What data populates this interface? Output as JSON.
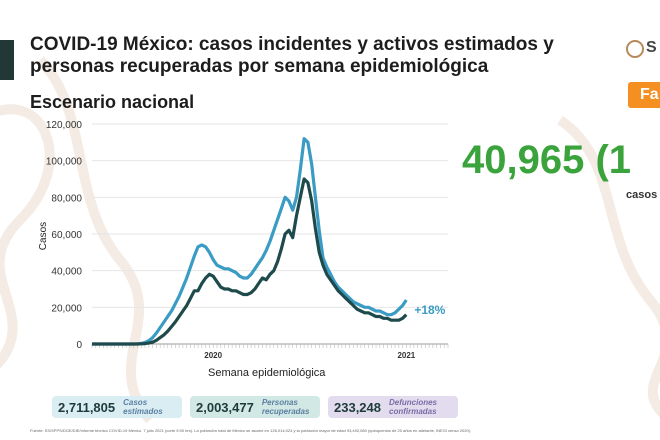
{
  "header": {
    "title": "COVID-19 México: casos incidentes y activos estimados y personas recuperadas por semana epidemiológica",
    "subtitle": "Escenario nacional",
    "logo_text": "S",
    "tag": "Fa"
  },
  "highlight": {
    "value": "40,965 (1",
    "caption": "casos a"
  },
  "chart_data": {
    "type": "line",
    "xlabel": "Semana epidemiológica",
    "ylabel": "Casos",
    "ylim": [
      0,
      120000
    ],
    "yticks": [
      0,
      20000,
      40000,
      60000,
      80000,
      100000,
      120000
    ],
    "ytick_labels": [
      "0",
      "20,000",
      "40,000",
      "60,000",
      "80,000",
      "100,000",
      "120,000"
    ],
    "xtick_labels": [
      {
        "label": "2020",
        "week": 32
      },
      {
        "label": "2021",
        "week": 83
      }
    ],
    "weeks": 95,
    "series": [
      {
        "color": "#3a9bc4",
        "values": [
          0,
          0,
          0,
          0,
          0,
          0,
          0,
          0,
          0,
          0,
          0,
          0,
          100,
          300,
          800,
          1800,
          3500,
          6000,
          9000,
          12000,
          15000,
          18000,
          22000,
          26000,
          31000,
          36000,
          42000,
          48000,
          53000,
          54000,
          53000,
          50000,
          46000,
          43000,
          42000,
          41000,
          41000,
          40000,
          39000,
          37000,
          36000,
          36000,
          38000,
          41000,
          44000,
          47000,
          51000,
          56000,
          62000,
          68000,
          74000,
          80000,
          78000,
          73000,
          80000,
          95000,
          112000,
          110000,
          98000,
          80000,
          62000,
          47000,
          42000,
          38000,
          34000,
          31000,
          29000,
          27000,
          25000,
          23000,
          22000,
          21000,
          20000,
          20000,
          19000,
          18000,
          18000,
          17000,
          16000,
          16000,
          17000,
          19000,
          21000,
          24000
        ]
      },
      {
        "color": "#1f4a4c",
        "values": [
          0,
          0,
          0,
          0,
          0,
          0,
          0,
          0,
          0,
          0,
          0,
          0,
          0,
          100,
          200,
          500,
          1000,
          2000,
          3500,
          5000,
          7000,
          9500,
          12000,
          15000,
          18000,
          21000,
          25000,
          29000,
          29000,
          33000,
          36000,
          38000,
          37000,
          34000,
          31000,
          30000,
          30000,
          29000,
          29000,
          28000,
          27000,
          27000,
          28000,
          30000,
          33000,
          36000,
          35000,
          38000,
          40000,
          45000,
          52000,
          60000,
          62000,
          58000,
          70000,
          80000,
          90000,
          88000,
          78000,
          63000,
          50000,
          43000,
          38000,
          35000,
          32000,
          29000,
          27000,
          25000,
          23000,
          21000,
          19000,
          18000,
          17000,
          17000,
          16000,
          15000,
          15000,
          14000,
          14000,
          13000,
          13000,
          13000,
          14000,
          16000
        ]
      }
    ],
    "annotations": [
      {
        "text": "+18%",
        "color": "#3a9bc4"
      }
    ],
    "grid": true,
    "legend": "none"
  },
  "stats": [
    {
      "value": "2,711,805",
      "label": "Casos estimados"
    },
    {
      "value": "2,003,477",
      "label": "Personas recuperadas"
    },
    {
      "value": "233,248",
      "label": "Defunciones confirmadas"
    }
  ],
  "footnote": "Fuente: SS/SPPS/DGE/DIE/Informe técnico COVID-19 México. 7 julio 2021 (corte 9:00 hrs). La población total de México se asume en 126,014,024 y la población mayor de edad 93,492,080 (quinquenios de 20 años en adelante, INEGI censo 2020)."
}
